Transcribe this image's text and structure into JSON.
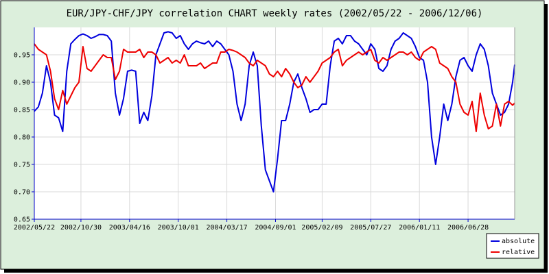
{
  "colors": {
    "frame_background": "#dcefdc",
    "plot_background": "#ffffff",
    "axis": "#0000cc",
    "grid": "#d9d9d9",
    "absolute": "#0000dd",
    "relative": "#ee0000",
    "legend_border": "#000000"
  },
  "chart_data": {
    "type": "line",
    "title": "EUR/JPY-CHF/JPY correlation CHART weekly rates (2002/05/22 - 2006/12/06)",
    "xlabel": "",
    "ylabel": "",
    "x_range": [
      "2002/05/22",
      "2006/12/06"
    ],
    "x_ticks": [
      "2002/05/22",
      "2002/10/30",
      "2003/04/16",
      "2003/10/01",
      "2004/03/17",
      "2004/09/01",
      "2005/02/09",
      "2005/07/27",
      "2006/01/11",
      "2006/06/28"
    ],
    "ylim": [
      0.65,
      1.0
    ],
    "y_ticks": [
      "0.65",
      "0.70",
      "0.75",
      "0.80",
      "0.85",
      "0.90",
      "0.95"
    ],
    "y_tick_values": [
      0.65,
      0.7,
      0.75,
      0.8,
      0.85,
      0.9,
      0.95
    ],
    "grid": true,
    "legend_position": "bottom-right",
    "series": [
      {
        "name": "absolute",
        "color": "#0000dd",
        "points": [
          [
            "2002/05/22",
            0.847
          ],
          [
            "2002/06/05",
            0.855
          ],
          [
            "2002/06/19",
            0.88
          ],
          [
            "2002/07/03",
            0.93
          ],
          [
            "2002/07/17",
            0.9
          ],
          [
            "2002/07/31",
            0.84
          ],
          [
            "2002/08/14",
            0.835
          ],
          [
            "2002/08/28",
            0.81
          ],
          [
            "2002/09/11",
            0.92
          ],
          [
            "2002/09/25",
            0.97
          ],
          [
            "2002/10/09",
            0.978
          ],
          [
            "2002/10/23",
            0.985
          ],
          [
            "2002/11/06",
            0.988
          ],
          [
            "2002/11/20",
            0.985
          ],
          [
            "2002/12/04",
            0.98
          ],
          [
            "2002/12/18",
            0.983
          ],
          [
            "2003/01/01",
            0.987
          ],
          [
            "2003/01/15",
            0.987
          ],
          [
            "2003/01/29",
            0.985
          ],
          [
            "2003/02/12",
            0.975
          ],
          [
            "2003/02/26",
            0.88
          ],
          [
            "2003/03/12",
            0.84
          ],
          [
            "2003/03/26",
            0.87
          ],
          [
            "2003/04/09",
            0.92
          ],
          [
            "2003/04/23",
            0.922
          ],
          [
            "2003/05/07",
            0.92
          ],
          [
            "2003/05/21",
            0.825
          ],
          [
            "2003/06/04",
            0.845
          ],
          [
            "2003/06/18",
            0.83
          ],
          [
            "2003/07/02",
            0.875
          ],
          [
            "2003/07/16",
            0.95
          ],
          [
            "2003/07/30",
            0.97
          ],
          [
            "2003/08/13",
            0.99
          ],
          [
            "2003/08/27",
            0.992
          ],
          [
            "2003/09/10",
            0.99
          ],
          [
            "2003/09/24",
            0.98
          ],
          [
            "2003/10/08",
            0.985
          ],
          [
            "2003/10/22",
            0.97
          ],
          [
            "2003/11/05",
            0.96
          ],
          [
            "2003/11/19",
            0.97
          ],
          [
            "2003/12/03",
            0.975
          ],
          [
            "2003/12/17",
            0.972
          ],
          [
            "2003/12/31",
            0.97
          ],
          [
            "2004/01/14",
            0.975
          ],
          [
            "2004/01/28",
            0.965
          ],
          [
            "2004/02/11",
            0.975
          ],
          [
            "2004/02/25",
            0.97
          ],
          [
            "2004/03/10",
            0.96
          ],
          [
            "2004/03/24",
            0.95
          ],
          [
            "2004/04/07",
            0.92
          ],
          [
            "2004/04/21",
            0.86
          ],
          [
            "2004/05/05",
            0.83
          ],
          [
            "2004/05/19",
            0.86
          ],
          [
            "2004/06/02",
            0.93
          ],
          [
            "2004/06/16",
            0.955
          ],
          [
            "2004/06/30",
            0.93
          ],
          [
            "2004/07/14",
            0.82
          ],
          [
            "2004/07/28",
            0.74
          ],
          [
            "2004/08/11",
            0.72
          ],
          [
            "2004/08/25",
            0.7
          ],
          [
            "2004/09/08",
            0.76
          ],
          [
            "2004/09/22",
            0.83
          ],
          [
            "2004/10/06",
            0.83
          ],
          [
            "2004/10/20",
            0.86
          ],
          [
            "2004/11/03",
            0.9
          ],
          [
            "2004/11/17",
            0.915
          ],
          [
            "2004/12/01",
            0.89
          ],
          [
            "2004/12/15",
            0.87
          ],
          [
            "2004/12/29",
            0.845
          ],
          [
            "2005/01/12",
            0.85
          ],
          [
            "2005/01/26",
            0.85
          ],
          [
            "2005/02/09",
            0.86
          ],
          [
            "2005/02/23",
            0.86
          ],
          [
            "2005/03/09",
            0.93
          ],
          [
            "2005/03/23",
            0.975
          ],
          [
            "2005/04/06",
            0.98
          ],
          [
            "2005/04/20",
            0.97
          ],
          [
            "2005/05/04",
            0.985
          ],
          [
            "2005/05/18",
            0.985
          ],
          [
            "2005/06/01",
            0.975
          ],
          [
            "2005/06/15",
            0.97
          ],
          [
            "2005/06/29",
            0.96
          ],
          [
            "2005/07/13",
            0.95
          ],
          [
            "2005/07/27",
            0.97
          ],
          [
            "2005/08/10",
            0.96
          ],
          [
            "2005/08/24",
            0.925
          ],
          [
            "2005/09/07",
            0.92
          ],
          [
            "2005/09/21",
            0.93
          ],
          [
            "2005/10/05",
            0.96
          ],
          [
            "2005/10/19",
            0.975
          ],
          [
            "2005/11/02",
            0.98
          ],
          [
            "2005/11/16",
            0.99
          ],
          [
            "2005/11/30",
            0.985
          ],
          [
            "2005/12/14",
            0.98
          ],
          [
            "2005/12/28",
            0.965
          ],
          [
            "2006/01/11",
            0.945
          ],
          [
            "2006/01/25",
            0.94
          ],
          [
            "2006/02/08",
            0.9
          ],
          [
            "2006/02/22",
            0.8
          ],
          [
            "2006/03/08",
            0.75
          ],
          [
            "2006/03/22",
            0.8
          ],
          [
            "2006/04/05",
            0.86
          ],
          [
            "2006/04/19",
            0.83
          ],
          [
            "2006/05/03",
            0.86
          ],
          [
            "2006/05/17",
            0.91
          ],
          [
            "2006/05/31",
            0.94
          ],
          [
            "2006/06/14",
            0.945
          ],
          [
            "2006/06/28",
            0.93
          ],
          [
            "2006/07/12",
            0.92
          ],
          [
            "2006/07/26",
            0.95
          ],
          [
            "2006/08/09",
            0.97
          ],
          [
            "2006/08/23",
            0.96
          ],
          [
            "2006/09/06",
            0.93
          ],
          [
            "2006/09/20",
            0.88
          ],
          [
            "2006/10/04",
            0.86
          ],
          [
            "2006/10/18",
            0.84
          ],
          [
            "2006/11/01",
            0.845
          ],
          [
            "2006/11/15",
            0.86
          ],
          [
            "2006/11/29",
            0.9
          ],
          [
            "2006/12/06",
            0.932
          ]
        ]
      },
      {
        "name": "relative",
        "color": "#ee0000",
        "points": [
          [
            "2002/05/22",
            0.97
          ],
          [
            "2002/06/05",
            0.96
          ],
          [
            "2002/06/19",
            0.955
          ],
          [
            "2002/07/03",
            0.95
          ],
          [
            "2002/07/17",
            0.92
          ],
          [
            "2002/07/31",
            0.87
          ],
          [
            "2002/08/14",
            0.85
          ],
          [
            "2002/08/28",
            0.885
          ],
          [
            "2002/09/11",
            0.86
          ],
          [
            "2002/09/25",
            0.875
          ],
          [
            "2002/10/09",
            0.89
          ],
          [
            "2002/10/23",
            0.9
          ],
          [
            "2002/11/06",
            0.965
          ],
          [
            "2002/11/20",
            0.925
          ],
          [
            "2002/12/04",
            0.92
          ],
          [
            "2002/12/18",
            0.93
          ],
          [
            "2003/01/01",
            0.94
          ],
          [
            "2003/01/15",
            0.95
          ],
          [
            "2003/01/29",
            0.945
          ],
          [
            "2003/02/12",
            0.945
          ],
          [
            "2003/02/26",
            0.905
          ],
          [
            "2003/03/12",
            0.92
          ],
          [
            "2003/03/26",
            0.96
          ],
          [
            "2003/04/09",
            0.955
          ],
          [
            "2003/04/23",
            0.955
          ],
          [
            "2003/05/07",
            0.955
          ],
          [
            "2003/05/21",
            0.96
          ],
          [
            "2003/06/04",
            0.945
          ],
          [
            "2003/06/18",
            0.955
          ],
          [
            "2003/07/02",
            0.955
          ],
          [
            "2003/07/16",
            0.95
          ],
          [
            "2003/07/30",
            0.935
          ],
          [
            "2003/08/13",
            0.94
          ],
          [
            "2003/08/27",
            0.945
          ],
          [
            "2003/09/10",
            0.935
          ],
          [
            "2003/09/24",
            0.94
          ],
          [
            "2003/10/08",
            0.935
          ],
          [
            "2003/10/22",
            0.95
          ],
          [
            "2003/11/05",
            0.93
          ],
          [
            "2003/11/19",
            0.93
          ],
          [
            "2003/12/03",
            0.93
          ],
          [
            "2003/12/17",
            0.935
          ],
          [
            "2003/12/31",
            0.925
          ],
          [
            "2004/01/14",
            0.93
          ],
          [
            "2004/01/28",
            0.935
          ],
          [
            "2004/02/11",
            0.935
          ],
          [
            "2004/02/25",
            0.955
          ],
          [
            "2004/03/10",
            0.955
          ],
          [
            "2004/03/24",
            0.96
          ],
          [
            "2004/04/07",
            0.958
          ],
          [
            "2004/04/21",
            0.955
          ],
          [
            "2004/05/05",
            0.95
          ],
          [
            "2004/05/19",
            0.945
          ],
          [
            "2004/06/02",
            0.935
          ],
          [
            "2004/06/16",
            0.93
          ],
          [
            "2004/06/30",
            0.94
          ],
          [
            "2004/07/14",
            0.935
          ],
          [
            "2004/07/28",
            0.93
          ],
          [
            "2004/08/11",
            0.915
          ],
          [
            "2004/08/25",
            0.91
          ],
          [
            "2004/09/08",
            0.92
          ],
          [
            "2004/09/22",
            0.91
          ],
          [
            "2004/10/06",
            0.925
          ],
          [
            "2004/10/20",
            0.915
          ],
          [
            "2004/11/03",
            0.9
          ],
          [
            "2004/11/17",
            0.89
          ],
          [
            "2004/12/01",
            0.895
          ],
          [
            "2004/12/15",
            0.91
          ],
          [
            "2004/12/29",
            0.9
          ],
          [
            "2005/01/12",
            0.91
          ],
          [
            "2005/01/26",
            0.92
          ],
          [
            "2005/02/09",
            0.935
          ],
          [
            "2005/02/23",
            0.94
          ],
          [
            "2005/03/09",
            0.945
          ],
          [
            "2005/03/23",
            0.955
          ],
          [
            "2005/04/06",
            0.96
          ],
          [
            "2005/04/20",
            0.93
          ],
          [
            "2005/05/04",
            0.94
          ],
          [
            "2005/05/18",
            0.945
          ],
          [
            "2005/06/01",
            0.95
          ],
          [
            "2005/06/15",
            0.955
          ],
          [
            "2005/06/29",
            0.95
          ],
          [
            "2005/07/13",
            0.955
          ],
          [
            "2005/07/27",
            0.96
          ],
          [
            "2005/08/10",
            0.94
          ],
          [
            "2005/08/24",
            0.935
          ],
          [
            "2005/09/07",
            0.945
          ],
          [
            "2005/09/21",
            0.94
          ],
          [
            "2005/10/05",
            0.945
          ],
          [
            "2005/10/19",
            0.95
          ],
          [
            "2005/11/02",
            0.955
          ],
          [
            "2005/11/16",
            0.955
          ],
          [
            "2005/11/30",
            0.95
          ],
          [
            "2005/12/14",
            0.955
          ],
          [
            "2005/12/28",
            0.945
          ],
          [
            "2006/01/11",
            0.94
          ],
          [
            "2006/01/25",
            0.955
          ],
          [
            "2006/02/08",
            0.96
          ],
          [
            "2006/02/22",
            0.965
          ],
          [
            "2006/03/08",
            0.96
          ],
          [
            "2006/03/22",
            0.935
          ],
          [
            "2006/04/05",
            0.93
          ],
          [
            "2006/04/19",
            0.925
          ],
          [
            "2006/05/03",
            0.91
          ],
          [
            "2006/05/17",
            0.9
          ],
          [
            "2006/05/31",
            0.86
          ],
          [
            "2006/06/14",
            0.845
          ],
          [
            "2006/06/28",
            0.84
          ],
          [
            "2006/07/12",
            0.865
          ],
          [
            "2006/07/26",
            0.81
          ],
          [
            "2006/08/09",
            0.88
          ],
          [
            "2006/08/23",
            0.84
          ],
          [
            "2006/09/06",
            0.815
          ],
          [
            "2006/09/20",
            0.82
          ],
          [
            "2006/10/04",
            0.86
          ],
          [
            "2006/10/18",
            0.82
          ],
          [
            "2006/11/01",
            0.86
          ],
          [
            "2006/11/15",
            0.865
          ],
          [
            "2006/11/29",
            0.858
          ],
          [
            "2006/12/06",
            0.862
          ]
        ]
      }
    ]
  }
}
